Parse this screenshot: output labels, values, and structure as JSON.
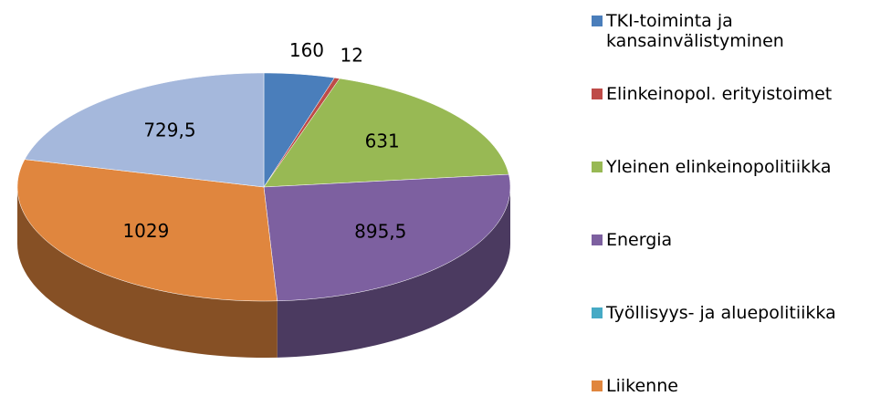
{
  "chart_data": {
    "type": "pie3d",
    "categories": [
      "TKI-toiminta ja kansainvälistyminen",
      "Elinkeinopol. erityistoimet",
      "Yleinen elinkeinopolitiikka",
      "Energia",
      "Työllisyys- ja aluepolitiikka",
      "Liikenne",
      null
    ],
    "values": [
      160,
      12,
      631,
      895.5,
      0,
      1029,
      729.5
    ],
    "value_labels": [
      "160",
      "12",
      "631",
      "895,5",
      null,
      "1029",
      "729,5"
    ],
    "colors": [
      "#4a7ebb",
      "#be4b48",
      "#98b954",
      "#7d60a0",
      "#46aac5",
      "#e0863e",
      "#a5b8dc"
    ],
    "legend": "right"
  }
}
